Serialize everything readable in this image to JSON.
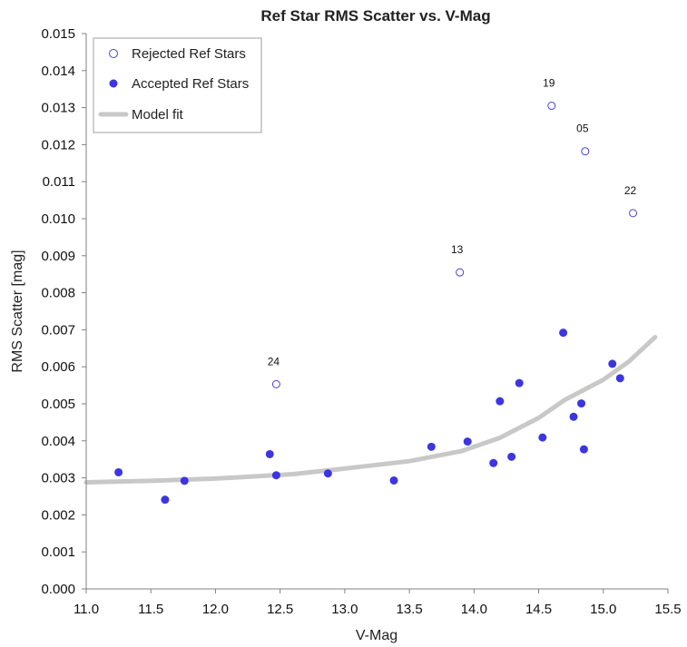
{
  "chart_data": {
    "type": "scatter",
    "title": "Ref Star RMS Scatter vs. V-Mag",
    "xlabel": "V-Mag",
    "ylabel": "RMS Scatter [mag]",
    "xlim": [
      11.0,
      15.5
    ],
    "ylim": [
      0.0,
      0.015
    ],
    "x_ticks": [
      "11.0",
      "11.5",
      "12.0",
      "12.5",
      "13.0",
      "13.5",
      "14.0",
      "14.5",
      "15.0",
      "15.5"
    ],
    "y_ticks": [
      "0.000",
      "0.001",
      "0.002",
      "0.003",
      "0.004",
      "0.005",
      "0.006",
      "0.007",
      "0.008",
      "0.009",
      "0.010",
      "0.011",
      "0.012",
      "0.013",
      "0.014",
      "0.015"
    ],
    "grid": false,
    "legend_position": "top-left",
    "series": [
      {
        "name": "Rejected Ref Stars",
        "marker": "open-circle",
        "color": "#4a3fd6",
        "points": [
          {
            "x": 12.47,
            "y": 0.00553,
            "label": "24"
          },
          {
            "x": 13.89,
            "y": 0.00855,
            "label": "13"
          },
          {
            "x": 14.6,
            "y": 0.01305,
            "label": "19"
          },
          {
            "x": 14.86,
            "y": 0.01182,
            "label": "05"
          },
          {
            "x": 15.23,
            "y": 0.01015,
            "label": "22"
          }
        ]
      },
      {
        "name": "Accepted Ref Stars",
        "marker": "filled-circle",
        "color": "#3d35e0",
        "points": [
          {
            "x": 11.25,
            "y": 0.00315
          },
          {
            "x": 11.61,
            "y": 0.00241
          },
          {
            "x": 11.76,
            "y": 0.00292
          },
          {
            "x": 12.42,
            "y": 0.00364
          },
          {
            "x": 12.47,
            "y": 0.00307
          },
          {
            "x": 12.87,
            "y": 0.00312
          },
          {
            "x": 13.38,
            "y": 0.00293
          },
          {
            "x": 13.67,
            "y": 0.00384
          },
          {
            "x": 13.95,
            "y": 0.00398
          },
          {
            "x": 14.15,
            "y": 0.0034
          },
          {
            "x": 14.2,
            "y": 0.00507
          },
          {
            "x": 14.29,
            "y": 0.00357
          },
          {
            "x": 14.35,
            "y": 0.00556
          },
          {
            "x": 14.53,
            "y": 0.00409
          },
          {
            "x": 14.69,
            "y": 0.00692
          },
          {
            "x": 14.77,
            "y": 0.00465
          },
          {
            "x": 14.83,
            "y": 0.00501
          },
          {
            "x": 14.85,
            "y": 0.00377
          },
          {
            "x": 15.07,
            "y": 0.00608
          },
          {
            "x": 15.13,
            "y": 0.00569
          }
        ]
      },
      {
        "name": "Model fit",
        "type": "line",
        "color": "#c8c8c8",
        "points": [
          {
            "x": 11.0,
            "y": 0.00288
          },
          {
            "x": 11.5,
            "y": 0.00292
          },
          {
            "x": 12.0,
            "y": 0.00298
          },
          {
            "x": 12.6,
            "y": 0.0031
          },
          {
            "x": 13.0,
            "y": 0.00325
          },
          {
            "x": 13.5,
            "y": 0.00345
          },
          {
            "x": 13.9,
            "y": 0.00372
          },
          {
            "x": 14.2,
            "y": 0.00408
          },
          {
            "x": 14.5,
            "y": 0.00462
          },
          {
            "x": 14.7,
            "y": 0.0051
          },
          {
            "x": 15.0,
            "y": 0.00565
          },
          {
            "x": 15.2,
            "y": 0.00615
          },
          {
            "x": 15.4,
            "y": 0.0068
          }
        ]
      }
    ]
  },
  "colors": {
    "rejected": "#4a3fd6",
    "accepted": "#3d35e0",
    "model": "#c8c8c8",
    "axis": "#808080"
  }
}
